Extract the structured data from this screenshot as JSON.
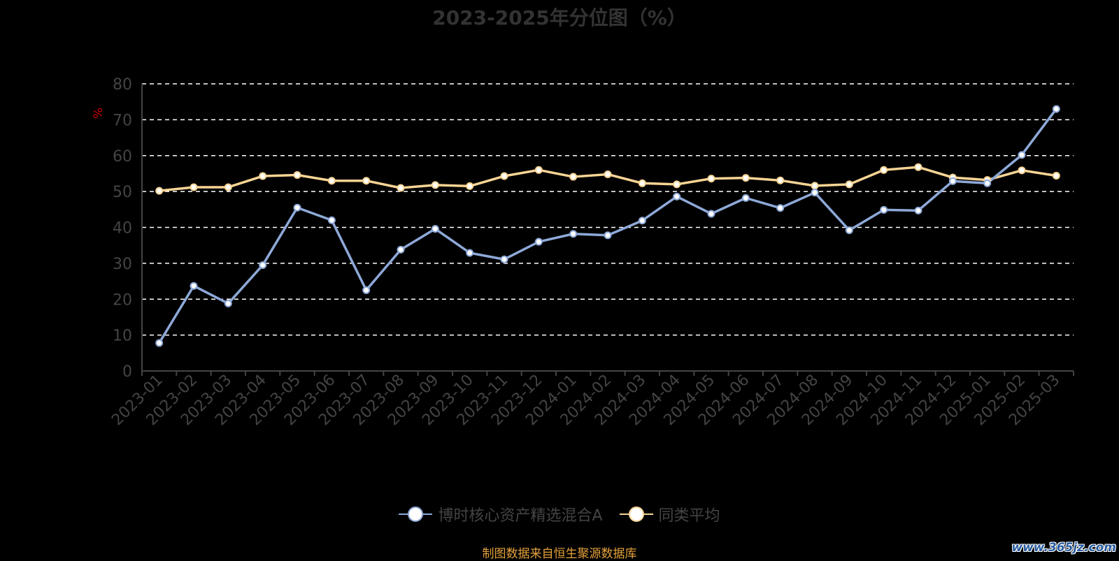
{
  "chart_data": {
    "type": "line",
    "title": "2023-2025年分位图（%）",
    "ylabel": "%",
    "ylim": [
      0,
      80
    ],
    "yticks": [
      0,
      10,
      20,
      30,
      40,
      50,
      60,
      70,
      80
    ],
    "grid": true,
    "legend_position": "bottom",
    "categories": [
      "2023-01",
      "2023-02",
      "2023-03",
      "2023-04",
      "2023-05",
      "2023-06",
      "2023-07",
      "2023-08",
      "2023-09",
      "2023-10",
      "2023-11",
      "2023-12",
      "2024-01",
      "2024-02",
      "2024-03",
      "2024-04",
      "2024-05",
      "2024-06",
      "2024-07",
      "2024-08",
      "2024-09",
      "2024-10",
      "2024-11",
      "2024-12",
      "2025-01",
      "2025-02",
      "2025-03"
    ],
    "series": [
      {
        "name": "博时核心资产精选混合A",
        "color": "#8ea9d8",
        "values": [
          7.8,
          23.7,
          18.8,
          29.5,
          45.5,
          42.0,
          22.5,
          33.8,
          39.6,
          32.9,
          31.1,
          36.0,
          38.2,
          37.8,
          41.9,
          48.6,
          43.8,
          48.2,
          45.4,
          49.7,
          39.2,
          44.9,
          44.7,
          52.9,
          52.3,
          60.2,
          73.0
        ]
      },
      {
        "name": "同类平均",
        "color": "#f7d494",
        "values": [
          50.2,
          51.2,
          51.2,
          54.3,
          54.6,
          53.0,
          53.0,
          51.0,
          51.8,
          51.5,
          54.3,
          56.0,
          54.1,
          54.8,
          52.3,
          52.0,
          53.6,
          53.8,
          53.1,
          51.6,
          52.0,
          56.0,
          56.8,
          53.9,
          53.2,
          55.9,
          54.4
        ]
      }
    ]
  },
  "source_note": "制图数据来自恒生聚源数据库",
  "watermark": "www.365jz.com",
  "colors": {
    "background": "#000000",
    "grid": "#ffffff",
    "axis": "#444444",
    "tick_label": "#444444",
    "ylabel": "#cc0000",
    "title": "#333333",
    "source": "#e6a23c"
  }
}
